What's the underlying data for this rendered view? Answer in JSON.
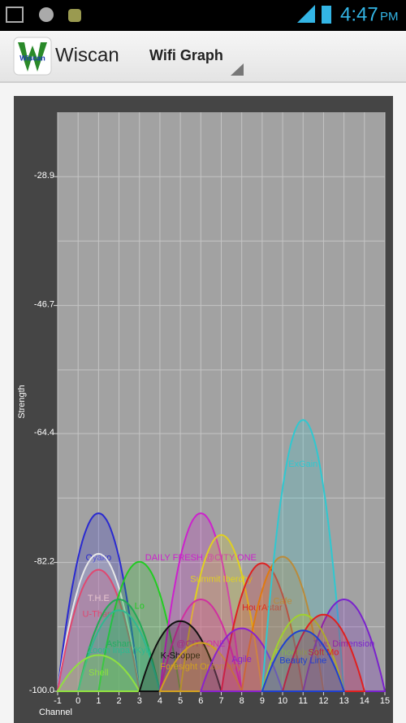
{
  "status_bar": {
    "time": "4:47",
    "ampm": "PM"
  },
  "app_bar": {
    "title": "Wiscan",
    "logo": "Wiscan",
    "spinner": "Wifi Graph"
  },
  "chart_data": {
    "type": "wifi",
    "x_label": "Channel",
    "y_label": "Strength",
    "xlim": [
      -1,
      15
    ],
    "xticks": [
      -1,
      0,
      1,
      2,
      3,
      4,
      5,
      6,
      7,
      8,
      9,
      10,
      11,
      12,
      13,
      14,
      15
    ],
    "ylim": [
      -100,
      -20
    ],
    "yticks": [
      {
        "value": -100,
        "label": "-100.0"
      },
      -82.2,
      -64.4,
      -46.7,
      -28.9
    ],
    "y_minor_ticks": [
      -91.1,
      -73.3,
      -55.6,
      -37.8
    ],
    "grid": true,
    "series": [
      {
        "name": "Oyako",
        "color": "#2a2ad0",
        "channel": 1,
        "strength": -75.4
      },
      {
        "name": "T.H.E",
        "color": "#e8e8e8",
        "channel": 1,
        "strength": -81.0
      },
      {
        "name": "U-Thant",
        "color": "#e04870",
        "channel": 1,
        "strength": -83.2
      },
      {
        "name": "Lo",
        "color": "#22cc22",
        "channel": 3,
        "strength": -82.1
      },
      {
        "name": "Ashan",
        "color": "#22aa55",
        "channel": 2,
        "strength": -87.3
      },
      {
        "name": "Zoom Inpa (Kyi)",
        "color": "#30b890",
        "channel": 2,
        "strength": -88.8
      },
      {
        "name": "Shell",
        "color": "#90e040",
        "channel": 1,
        "strength": -95.0
      },
      {
        "name": "DAILY FRESH @CITY ONE",
        "color": "#cc22cc",
        "channel": 6,
        "strength": -75.4
      },
      {
        "name": "Summit Iberchy",
        "color": "#e0d020",
        "channel": 7,
        "strength": -78.4
      },
      {
        "name": "@CITYONE",
        "color": "#d030a0",
        "channel": 6,
        "strength": -87.3
      },
      {
        "name": "K-Shoppe",
        "color": "#111111",
        "channel": 5,
        "strength": -90.3
      },
      {
        "name": "Foresight Optometry",
        "color": "#d0a020",
        "channel": 6,
        "strength": -93.3
      },
      {
        "name": "HourAstar",
        "color": "#dd2222",
        "channel": 9,
        "strength": -82.3
      },
      {
        "name": "Cafe",
        "color": "#e07a10",
        "channel": 10,
        "strength": -81.4
      },
      {
        "name": "Agile",
        "color": "#8a22cc",
        "channel": 8,
        "strength": -91.3
      },
      {
        "name": "ExGain",
        "color": "#30c8d0",
        "channel": 11,
        "strength": -62.5
      },
      {
        "name": "Two Dimension",
        "color": "#7a22cc",
        "channel": 13,
        "strength": -87.3
      },
      {
        "name": "Phoenix More",
        "color": "#a0d030",
        "channel": 11,
        "strength": -89.4
      },
      {
        "name": "Soft Mo",
        "color": "#e02020",
        "channel": 12,
        "strength": -89.4
      },
      {
        "name": "Beauty Line",
        "color": "#2040d0",
        "channel": 11,
        "strength": -91.6
      }
    ]
  }
}
